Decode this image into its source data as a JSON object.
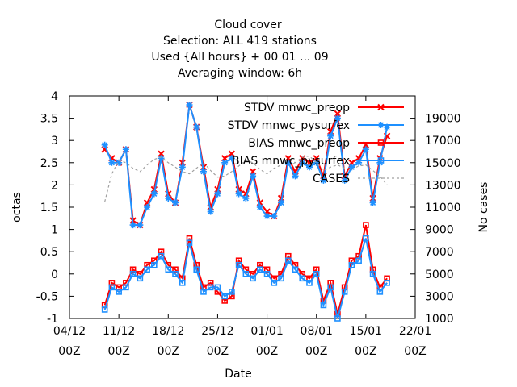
{
  "chart_data": {
    "type": "line",
    "title_lines": [
      "Cloud cover",
      "Selection: ALL    419 stations",
      "Used {All hours} + 00 01 ... 09",
      "Averaging window:  6h"
    ],
    "xlabel": "Date",
    "ylabel": "octas",
    "y2label": "No cases",
    "xlim": [
      "2023-12-04T00:00",
      "2024-01-22T00:00"
    ],
    "ylim": [
      -1,
      4
    ],
    "y2lim": [
      1000,
      21000
    ],
    "x_ticks": [
      {
        "date": "2023-12-04",
        "top": "04/12",
        "bottom": "00Z"
      },
      {
        "date": "2023-12-11",
        "top": "11/12",
        "bottom": "00Z"
      },
      {
        "date": "2023-12-18",
        "top": "18/12",
        "bottom": "00Z"
      },
      {
        "date": "2023-12-25",
        "top": "25/12",
        "bottom": "00Z"
      },
      {
        "date": "2024-01-01",
        "top": "01/01",
        "bottom": "00Z"
      },
      {
        "date": "2024-01-08",
        "top": "08/01",
        "bottom": "00Z"
      },
      {
        "date": "2024-01-15",
        "top": "15/01",
        "bottom": "00Z"
      },
      {
        "date": "2024-01-22",
        "top": "22/01",
        "bottom": "00Z"
      }
    ],
    "y_ticks": [
      "-1",
      "-0.5",
      "0",
      "0.5",
      "1",
      "1.5",
      "2",
      "2.5",
      "3",
      "3.5",
      "4"
    ],
    "y2_ticks": [
      "1000",
      "3000",
      "5000",
      "7000",
      "9000",
      "11000",
      "13000",
      "15000",
      "17000",
      "19000"
    ],
    "legend_position": "top-right",
    "x": [
      "2023-12-09",
      "2023-12-10",
      "2023-12-11",
      "2023-12-12",
      "2023-12-13",
      "2023-12-14",
      "2023-12-15",
      "2023-12-16",
      "2023-12-17",
      "2023-12-18",
      "2023-12-19",
      "2023-12-20",
      "2023-12-21",
      "2023-12-22",
      "2023-12-23",
      "2023-12-24",
      "2023-12-25",
      "2023-12-26",
      "2023-12-27",
      "2023-12-28",
      "2023-12-29",
      "2023-12-30",
      "2023-12-31",
      "2024-01-01",
      "2024-01-02",
      "2024-01-03",
      "2024-01-04",
      "2024-01-05",
      "2024-01-06",
      "2024-01-07",
      "2024-01-08",
      "2024-01-09",
      "2024-01-10",
      "2024-01-11",
      "2024-01-12",
      "2024-01-13",
      "2024-01-14",
      "2024-01-15",
      "2024-01-16",
      "2024-01-17",
      "2024-01-18"
    ],
    "series": [
      {
        "name": "STDV mnwc_preop",
        "axis": "y1",
        "color": "#ff0000",
        "marker": "x",
        "values": [
          2.8,
          2.6,
          2.5,
          2.8,
          1.2,
          1.1,
          1.6,
          1.9,
          2.7,
          1.8,
          1.6,
          2.5,
          3.8,
          3.3,
          2.4,
          1.5,
          1.9,
          2.6,
          2.7,
          1.9,
          1.8,
          2.3,
          1.6,
          1.4,
          1.3,
          1.7,
          2.6,
          2.3,
          2.6,
          2.5,
          2.6,
          2.2,
          3.2,
          3.6,
          2.2,
          2.5,
          2.6,
          2.9,
          1.7,
          2.6,
          3.1
        ]
      },
      {
        "name": "STDV mnwc_pysurfex",
        "axis": "y1",
        "color": "#1e90ff",
        "marker": "star",
        "values": [
          2.9,
          2.5,
          2.5,
          2.8,
          1.1,
          1.1,
          1.5,
          1.8,
          2.6,
          1.7,
          1.6,
          2.4,
          3.8,
          3.3,
          2.3,
          1.4,
          1.8,
          2.5,
          2.6,
          1.8,
          1.7,
          2.2,
          1.5,
          1.3,
          1.3,
          1.6,
          2.5,
          2.2,
          2.5,
          2.4,
          2.5,
          2.1,
          3.1,
          3.5,
          2.1,
          2.4,
          2.5,
          2.8,
          1.6,
          2.5,
          3.3
        ]
      },
      {
        "name": "BIAS mnwc_preop",
        "axis": "y1",
        "color": "#ff0000",
        "marker": "square",
        "values": [
          -0.7,
          -0.2,
          -0.3,
          -0.2,
          0.1,
          0.0,
          0.2,
          0.3,
          0.5,
          0.2,
          0.1,
          -0.1,
          0.8,
          0.2,
          -0.3,
          -0.2,
          -0.4,
          -0.6,
          -0.5,
          0.3,
          0.1,
          0.0,
          0.2,
          0.1,
          -0.1,
          0.0,
          0.4,
          0.2,
          0.0,
          -0.1,
          0.1,
          -0.6,
          -0.2,
          -0.9,
          -0.3,
          0.3,
          0.4,
          1.1,
          0.1,
          -0.3,
          -0.1
        ]
      },
      {
        "name": "BIAS mnwc_pysurfex",
        "axis": "y1",
        "color": "#1e90ff",
        "marker": "square",
        "values": [
          -0.8,
          -0.3,
          -0.4,
          -0.3,
          0.0,
          -0.1,
          0.1,
          0.2,
          0.4,
          0.1,
          0.0,
          -0.2,
          0.7,
          0.1,
          -0.4,
          -0.3,
          -0.3,
          -0.5,
          -0.4,
          0.2,
          0.0,
          -0.1,
          0.1,
          0.0,
          -0.2,
          -0.1,
          0.3,
          0.1,
          -0.1,
          -0.2,
          0.0,
          -0.7,
          -0.3,
          -1.0,
          -0.4,
          0.2,
          0.3,
          0.8,
          0.0,
          -0.4,
          -0.2
        ]
      },
      {
        "name": "CASES",
        "axis": "y2",
        "color": "#a0a0a0",
        "marker": "none",
        "dashed": true,
        "values": [
          11500,
          14000,
          15200,
          15000,
          14500,
          14200,
          14800,
          15300,
          15500,
          15000,
          14600,
          14200,
          14000,
          14500,
          15000,
          14300,
          13700,
          13800,
          14200,
          14700,
          15200,
          15000,
          14400,
          14000,
          14500,
          14800,
          15300,
          15000,
          15500,
          15600,
          15000,
          14300,
          14600,
          14800,
          14500,
          14400,
          14700,
          14800,
          14300,
          13800,
          13000
        ]
      }
    ]
  }
}
